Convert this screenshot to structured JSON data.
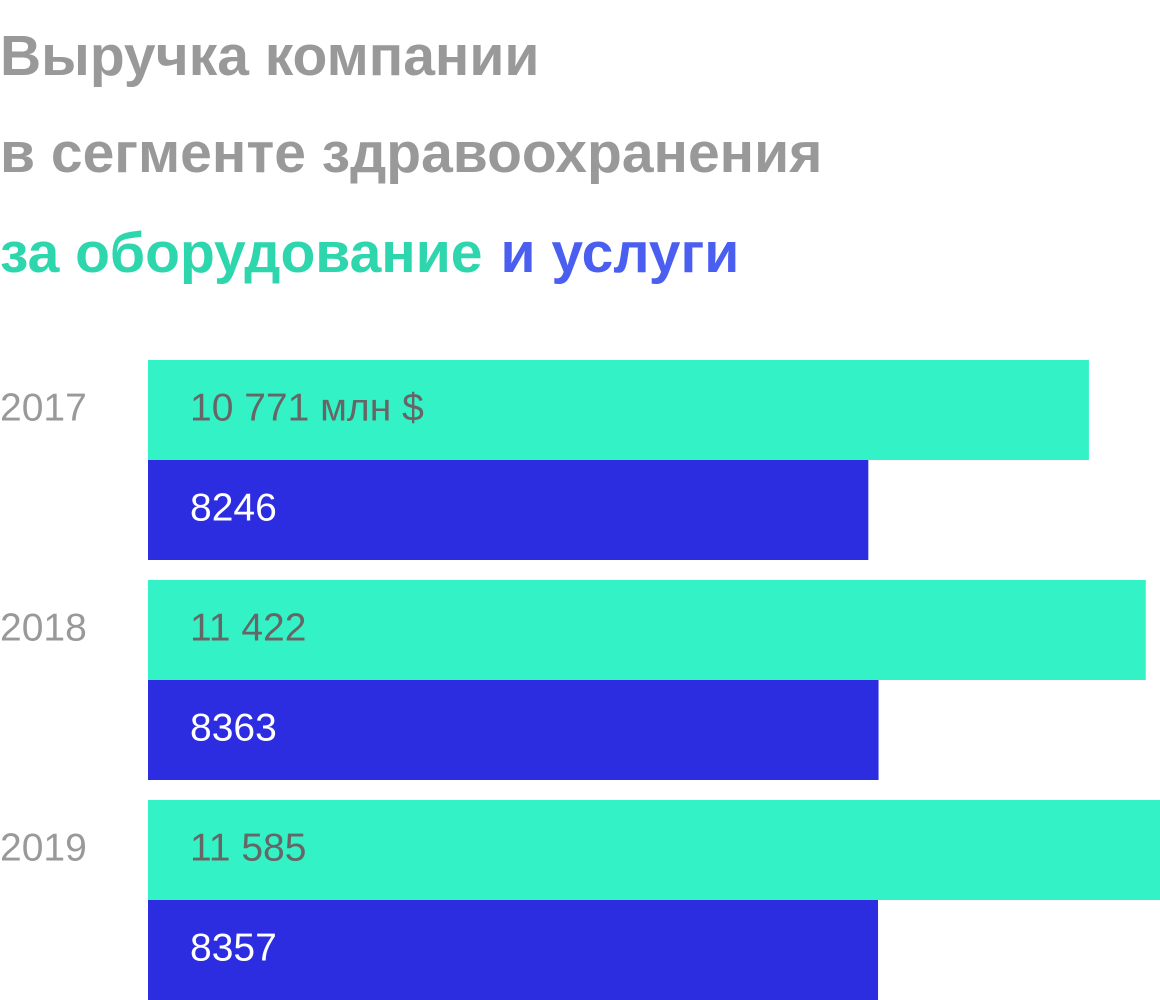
{
  "chart_data": {
    "type": "bar",
    "orientation": "horizontal",
    "title": [
      "Выручка компании",
      "в сегменте здравоохранения"
    ],
    "categories": [
      "2017",
      "2018",
      "2019"
    ],
    "series": [
      {
        "name": "за оборудование",
        "color": "#33f2c5",
        "legend_color": "#2ed6ad",
        "label_color": "#666666",
        "values": [
          10771,
          11422,
          11585
        ],
        "value_labels": [
          "10 771 млн $",
          "11 422",
          "11 585"
        ]
      },
      {
        "name": "и услуги",
        "color": "#2c2ce0",
        "legend_color": "#4a5ef0",
        "label_color": "#ffffff",
        "values": [
          8246,
          8363,
          8357
        ],
        "value_labels": [
          "8246",
          "8363",
          "8357"
        ]
      }
    ]
  }
}
